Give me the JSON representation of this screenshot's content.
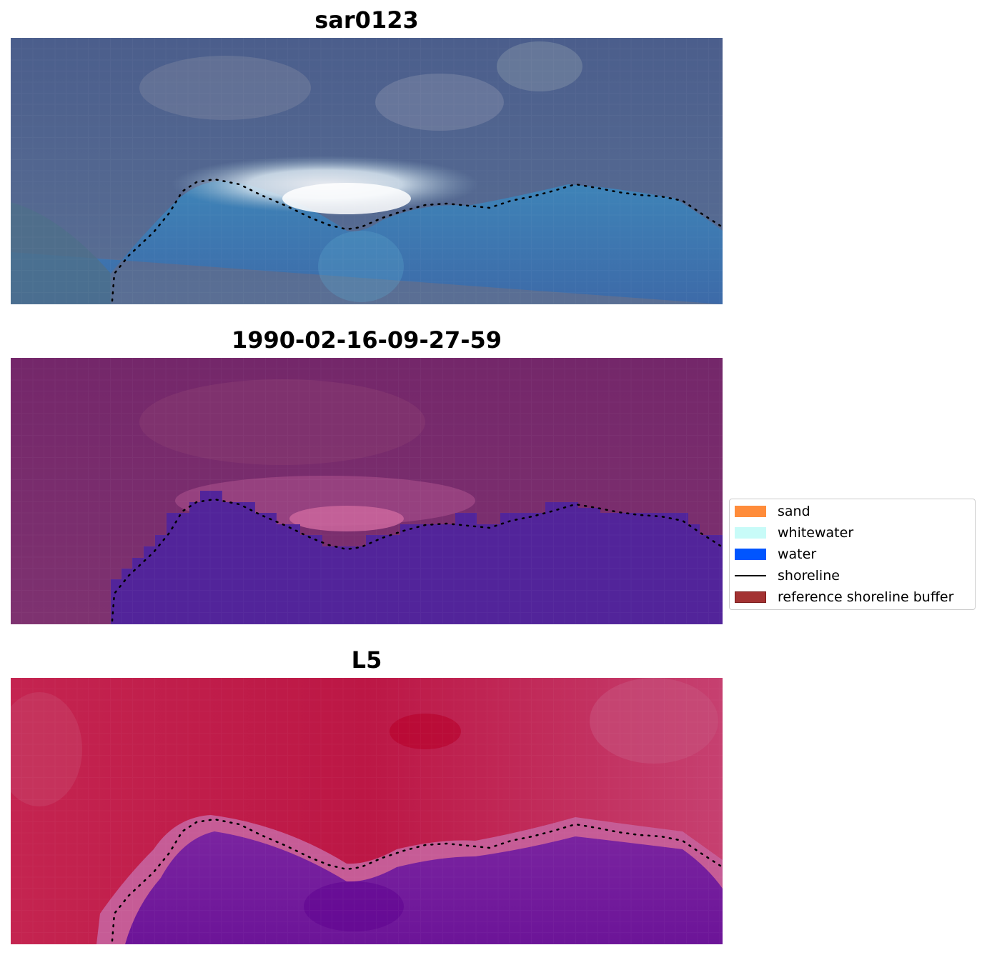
{
  "panels": [
    {
      "title": "sar0123"
    },
    {
      "title": "1990-02-16-09-27-59"
    },
    {
      "title": "L5"
    }
  ],
  "legend": {
    "items": [
      {
        "label": "sand",
        "kind": "patch",
        "color": "#ff8c3a"
      },
      {
        "label": "whitewater",
        "kind": "patch",
        "color": "#c8fbf8"
      },
      {
        "label": "water",
        "kind": "patch",
        "color": "#0055ff"
      },
      {
        "label": "shoreline",
        "kind": "line",
        "color": "#000000"
      },
      {
        "label": "reference shoreline buffer",
        "kind": "patch",
        "color": "#a33232"
      }
    ]
  },
  "colors": {
    "sar_sky": "#4a5d88",
    "sar_surf": "#ffffff",
    "sar_water": "#3d78b0",
    "classified_land": "#7a2e6a",
    "classified_water": "#53249a",
    "classified_surf": "#c05f98",
    "mndwi_land": "#c41a45",
    "mndwi_water": "#6e1098",
    "mndwi_edge": "#c85c96"
  }
}
